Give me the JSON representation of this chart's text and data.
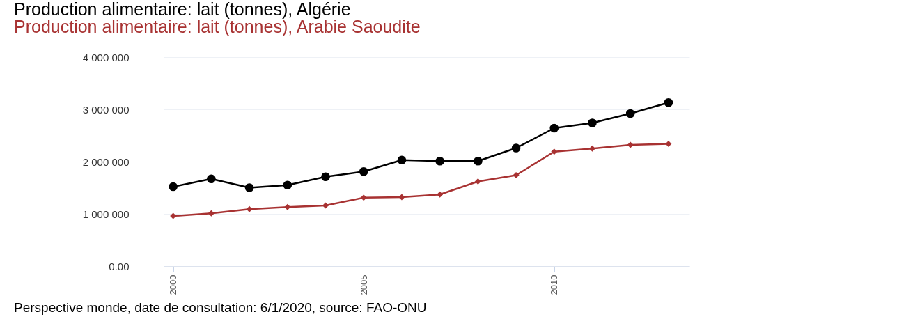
{
  "chart_data": {
    "type": "line",
    "title": "Production alimentaire: lait (tonnes), Algérie",
    "subtitle": "Production alimentaire: lait (tonnes), Arabie Saoudite",
    "x": [
      2000,
      2001,
      2002,
      2003,
      2004,
      2005,
      2006,
      2007,
      2008,
      2009,
      2010,
      2011,
      2012,
      2013
    ],
    "series": [
      {
        "color": "#000000",
        "marker": "circle",
        "values": [
          1520000,
          1670000,
          1500000,
          1550000,
          1710000,
          1810000,
          2030000,
          2010000,
          2010000,
          2260000,
          2640000,
          2740000,
          2920000,
          3130000
        ]
      },
      {
        "color": "#a83232",
        "marker": "diamond",
        "values": [
          960000,
          1010000,
          1090000,
          1130000,
          1160000,
          1310000,
          1320000,
          1370000,
          1620000,
          1740000,
          2190000,
          2250000,
          2320000,
          2340000
        ]
      }
    ],
    "xlim": [
      1999.75,
      2013.55
    ],
    "xticks": [
      2000,
      2005,
      2010
    ],
    "ylim": [
      0,
      4000000
    ],
    "yticks": [
      {
        "value": 0,
        "label": "0.00"
      },
      {
        "value": 1000000,
        "label": "1 000 000"
      },
      {
        "value": 2000000,
        "label": "2 000 000"
      },
      {
        "value": 3000000,
        "label": "3 000 000"
      },
      {
        "value": 4000000,
        "label": "4 000 000"
      }
    ],
    "grid": "y",
    "annotations": [
      "Perspective monde, date de consultation: 6/1/2020, source: FAO-ONU"
    ]
  }
}
